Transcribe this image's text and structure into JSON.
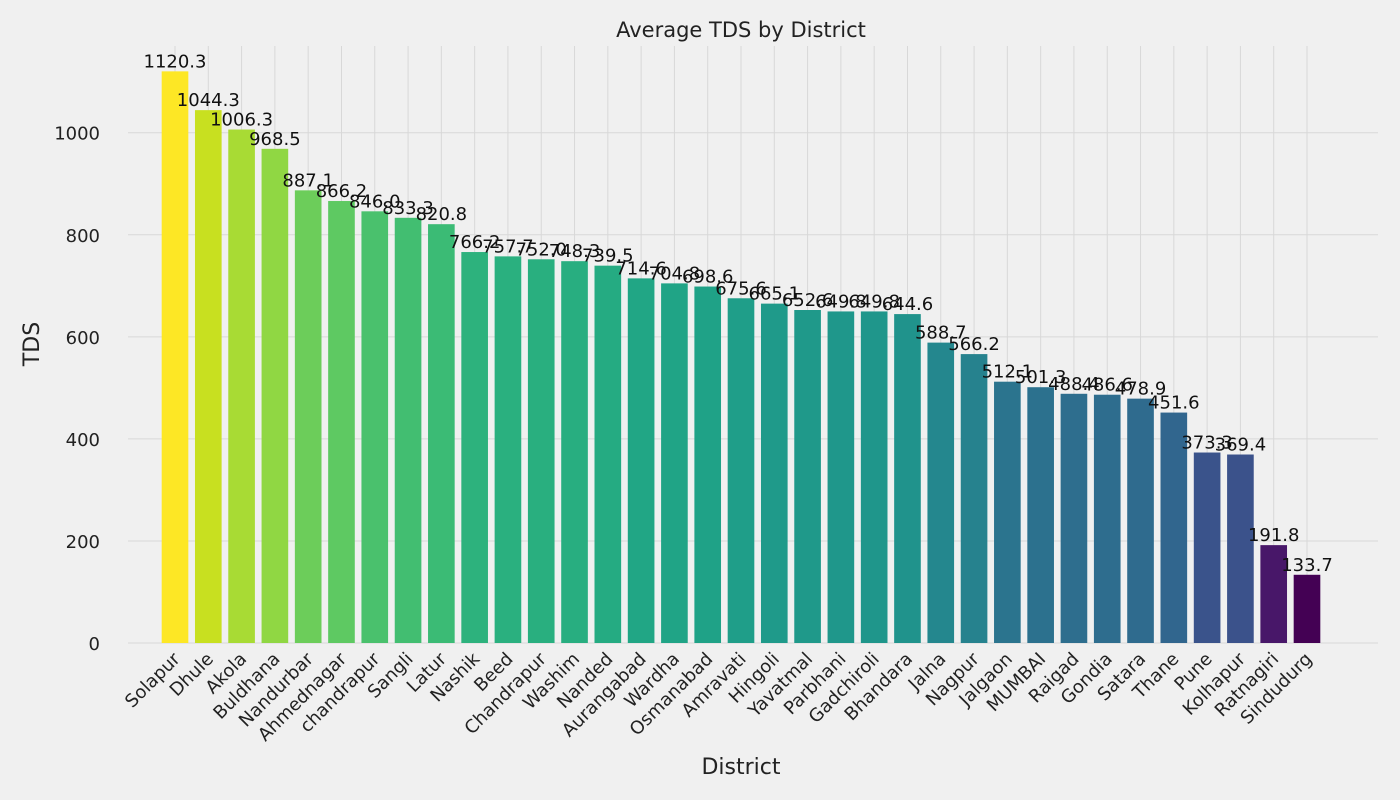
{
  "chart_data": {
    "type": "bar",
    "title": "Average TDS by District",
    "xlabel": "District",
    "ylabel": "TDS",
    "ylim": [
      0,
      1170
    ],
    "yticks": [
      0,
      200,
      400,
      600,
      800,
      1000
    ],
    "grid": true,
    "categories": [
      "Solapur",
      "Dhule",
      "Akola",
      "Buldhana",
      "Nandurbar",
      "Ahmednagar",
      "chandrapur",
      "Sangli",
      "Latur",
      "Nashik",
      "Beed",
      "Chandrapur",
      "Washim",
      "Nanded",
      "Aurangabad",
      "Wardha",
      "Osmanabad",
      "Amravati",
      "Hingoli",
      "Yavatmal",
      "Parbhani",
      "Gadchiroli",
      "Bhandara",
      "Jalna",
      "Nagpur",
      "Jalgaon",
      "MUMBAI",
      "Raigad",
      "Gondia",
      "Satara",
      "Thane",
      "Pune",
      "Kolhapur",
      "Ratnagiri",
      "Sindudurg"
    ],
    "values": [
      1120.3,
      1044.3,
      1006.3,
      968.5,
      887.1,
      866.2,
      846.0,
      833.3,
      820.8,
      766.2,
      757.7,
      752.0,
      748.3,
      739.5,
      714.6,
      704.8,
      698.6,
      675.6,
      665.1,
      652.6,
      649.8,
      649.8,
      644.6,
      588.7,
      566.2,
      512.1,
      501.3,
      488.4,
      486.6,
      478.9,
      451.6,
      373.3,
      369.4,
      191.8,
      133.7
    ],
    "value_labels": [
      "1120.3",
      "1044.3",
      "1006.3",
      "968.5",
      "887.1",
      "866.2",
      "846.0",
      "833.3",
      "820.8",
      "766.2",
      "757.7",
      "752.0",
      "748.3",
      "739.5",
      "714.6",
      "704.8",
      "698.6",
      "675.6",
      "665.1",
      "652.6",
      "649.8",
      "649.8",
      "644.6",
      "588.7",
      "566.2",
      "512.1",
      "501.3",
      "488.4",
      "486.6",
      "478.9",
      "451.6",
      "373.3",
      "369.4",
      "191.8",
      "133.7"
    ],
    "colors": [
      "#fde725",
      "#c8e020",
      "#a8db34",
      "#90d743",
      "#6ccd5a",
      "#5ec962",
      "#4ac16d",
      "#42be71",
      "#3bbb75",
      "#2db27d",
      "#2ab07f",
      "#29af7f",
      "#28ae80",
      "#25ab82",
      "#21a685",
      "#20a486",
      "#1fa287",
      "#1f9e89",
      "#1f9a8a",
      "#1f998a",
      "#1f978b",
      "#1f968b",
      "#20938c",
      "#24878e",
      "#26828e",
      "#2b748e",
      "#2c718e",
      "#2e6e8e",
      "#2e6d8e",
      "#2f6b8e",
      "#31668e",
      "#3a538b",
      "#3b528b",
      "#481769",
      "#440154"
    ],
    "background": "#f0f0f0",
    "grid_color": "#d8d8d8"
  }
}
